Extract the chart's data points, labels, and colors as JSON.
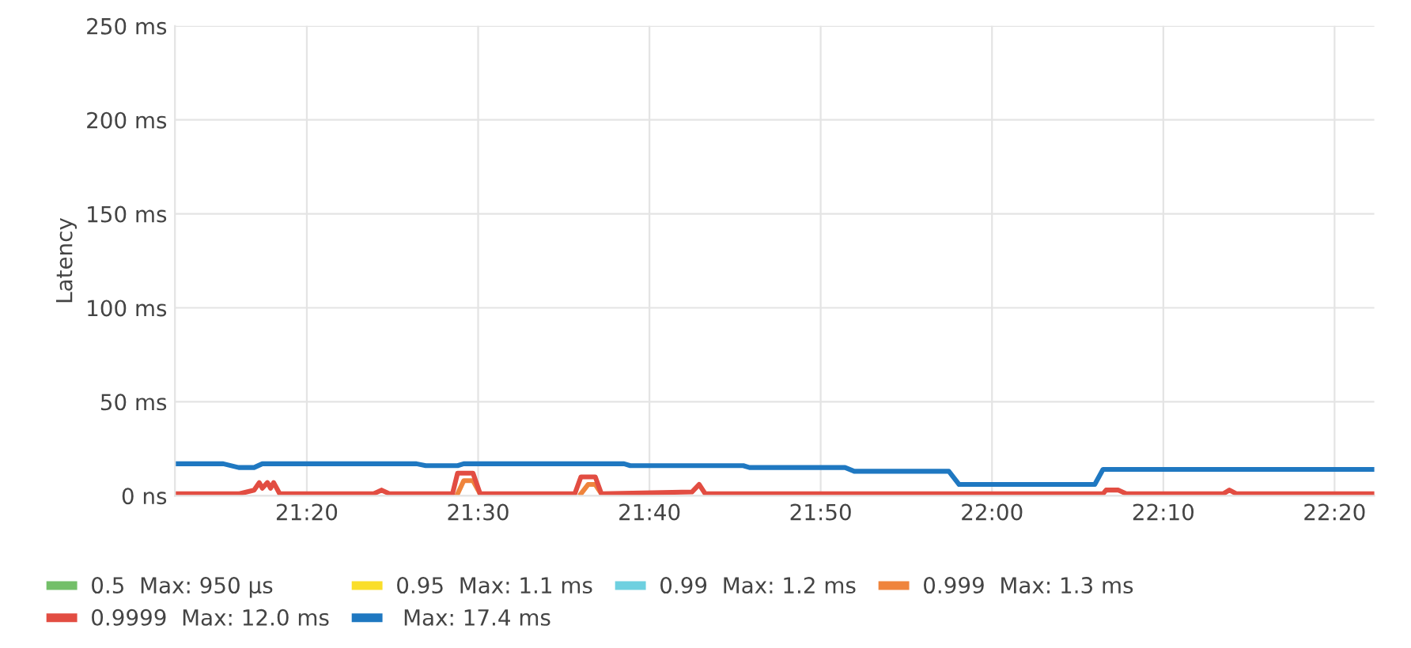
{
  "chart_data": {
    "type": "line",
    "ylabel": "Latency",
    "xlim": [
      21.205,
      22.372
    ],
    "xticks": [
      {
        "value": 21.3333,
        "label": "21:20"
      },
      {
        "value": 21.5,
        "label": "21:30"
      },
      {
        "value": 21.6667,
        "label": "21:40"
      },
      {
        "value": 21.8333,
        "label": "21:50"
      },
      {
        "value": 22.0,
        "label": "22:00"
      },
      {
        "value": 22.1667,
        "label": "22:10"
      },
      {
        "value": 22.3333,
        "label": "22:20"
      }
    ],
    "ylim": [
      0,
      250
    ],
    "yticks": [
      {
        "value": 0,
        "label": "0 ns"
      },
      {
        "value": 50,
        "label": "50 ms"
      },
      {
        "value": 100,
        "label": "100 ms"
      },
      {
        "value": 150,
        "label": "150 ms"
      },
      {
        "value": 200,
        "label": "200 ms"
      },
      {
        "value": 250,
        "label": "250 ms"
      }
    ],
    "grid": true,
    "legend": "bottom",
    "marker": "none",
    "line_style": "solid",
    "series": [
      {
        "name": "0.5  Max: 950 µs",
        "color": "#73bf69"
      },
      {
        "name": "0.95  Max: 1.1 ms",
        "color": "#fade2a"
      },
      {
        "name": "0.99  Max: 1.2 ms",
        "color": "#6ed0e0"
      },
      {
        "name": "0.999  Max: 1.3 ms",
        "color": "#ef843c",
        "x": [
          21.48,
          21.486,
          21.495,
          21.502,
          21.55,
          21.6,
          21.607,
          21.614,
          21.62
        ],
        "values": [
          1,
          8,
          8,
          1,
          null,
          1,
          6,
          6,
          1
        ]
      },
      {
        "name": "0.9999  Max: 12.0 ms",
        "color": "#e24d42",
        "x": [
          21.205,
          21.252,
          21.267,
          21.282,
          21.287,
          21.29,
          21.295,
          21.298,
          21.301,
          21.307,
          21.398,
          21.406,
          21.414,
          21.475,
          21.48,
          21.495,
          21.502,
          21.594,
          21.6,
          21.614,
          21.62,
          21.708,
          21.715,
          21.721,
          22.108,
          22.111,
          22.123,
          22.131,
          22.225,
          22.231,
          22.238,
          22.372
        ],
        "values": [
          1,
          1,
          1,
          3,
          7,
          4,
          7,
          4,
          7,
          1,
          1,
          3,
          1,
          1,
          12,
          12,
          1,
          1,
          10,
          10,
          1,
          2,
          6,
          1,
          1,
          3,
          3,
          1,
          1,
          3,
          1,
          1
        ]
      },
      {
        "name": " Max: 17.4 ms",
        "color": "#1f78c1",
        "x": [
          21.205,
          21.252,
          21.267,
          21.282,
          21.29,
          21.44,
          21.449,
          21.48,
          21.486,
          21.642,
          21.648,
          21.758,
          21.764,
          21.857,
          21.866,
          21.958,
          21.968,
          22.1,
          22.108,
          22.372
        ],
        "values": [
          17,
          17,
          15,
          15,
          17,
          17,
          16,
          16,
          17,
          17,
          16,
          16,
          15,
          15,
          13,
          13,
          6,
          6,
          14,
          14
        ]
      }
    ]
  }
}
